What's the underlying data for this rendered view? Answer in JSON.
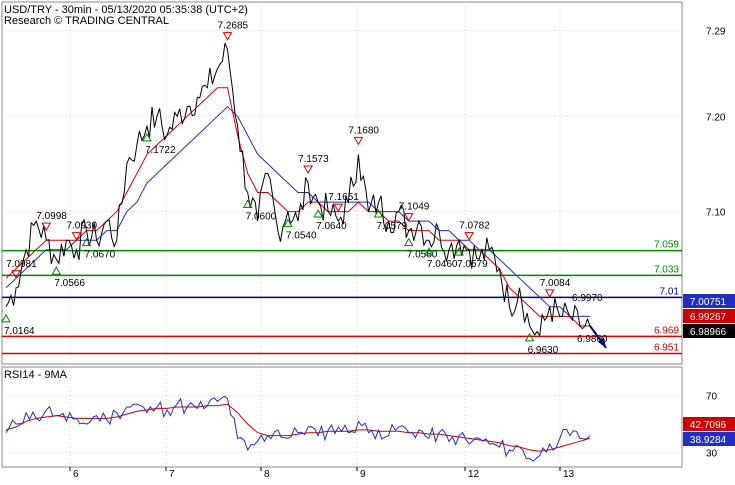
{
  "header": {
    "title": "USD/TRY - 30min - 05/13/2020 05:35:38 (UTC+2)",
    "subtitle": "Research © TRADING CENTRAL"
  },
  "colors": {
    "price": "#000000",
    "ma_fast": "#cc0000",
    "ma_slow": "#1f2fbf",
    "support": "#008800",
    "resistance_red": "#dd0000",
    "pivot_blue": "#00007f",
    "marker_up": "#008800",
    "marker_down": "#dd0000",
    "rsi": "#1f2fbf",
    "rsi_ma": "#cc0000",
    "grid": "#cccccc"
  },
  "chart_data": [
    {
      "type": "line",
      "title": "USD/TRY - 30min - 05/13/2020 05:35:38 (UTC+2)",
      "x_tick_labels": [
        "6",
        "7",
        "8",
        "9",
        "12",
        "13"
      ],
      "y_tick_labels": [
        "7.29",
        "7.20",
        "7.10"
      ],
      "ylim": [
        6.94,
        7.32
      ],
      "grid": true,
      "price_path": [
        7.0,
        7.02,
        7.06,
        7.09,
        7.07,
        7.05,
        7.07,
        7.06,
        7.08,
        7.07,
        7.09,
        7.07,
        7.15,
        7.17,
        7.19,
        7.2,
        7.18,
        7.2,
        7.21,
        7.22,
        7.23,
        7.25,
        7.27,
        7.19,
        7.12,
        7.09,
        7.14,
        7.08,
        7.1,
        7.09,
        7.13,
        7.11,
        7.1,
        7.09,
        7.11,
        7.16,
        7.1,
        7.11,
        7.09,
        7.1,
        7.08,
        7.09,
        7.07,
        7.08,
        7.06,
        7.07,
        7.06,
        7.05,
        7.06,
        7.04,
        7.0,
        7.02,
        6.98,
        6.97,
        7.0,
        6.99,
        6.99,
        6.98,
        6.98
      ],
      "ma_fast_path": [
        7.03,
        7.04,
        7.05,
        7.06,
        7.07,
        7.07,
        7.07,
        7.07,
        7.08,
        7.08,
        7.09,
        7.1,
        7.12,
        7.14,
        7.16,
        7.17,
        7.18,
        7.19,
        7.2,
        7.21,
        7.22,
        7.23,
        7.23,
        7.18,
        7.14,
        7.12,
        7.12,
        7.11,
        7.1,
        7.1,
        7.11,
        7.11,
        7.1,
        7.1,
        7.1,
        7.11,
        7.1,
        7.1,
        7.09,
        7.09,
        7.08,
        7.08,
        7.08,
        7.07,
        7.07,
        7.07,
        7.06,
        7.06,
        7.05,
        7.04,
        7.02,
        7.01,
        7.0,
        6.99,
        6.99,
        6.99,
        6.99,
        6.98,
        6.98
      ],
      "ma_slow_path": [
        7.02,
        7.03,
        7.04,
        7.05,
        7.06,
        7.06,
        7.06,
        7.07,
        7.07,
        7.07,
        7.08,
        7.08,
        7.1,
        7.11,
        7.13,
        7.14,
        7.15,
        7.16,
        7.17,
        7.18,
        7.19,
        7.2,
        7.21,
        7.2,
        7.18,
        7.16,
        7.15,
        7.14,
        7.13,
        7.12,
        7.12,
        7.11,
        7.11,
        7.11,
        7.11,
        7.11,
        7.11,
        7.1,
        7.1,
        7.1,
        7.09,
        7.09,
        7.09,
        7.08,
        7.08,
        7.07,
        7.07,
        7.06,
        7.06,
        7.05,
        7.04,
        7.03,
        7.02,
        7.01,
        7.0,
        7.0,
        6.99,
        6.99,
        6.99
      ],
      "horizontal_levels": [
        {
          "value": 7.059,
          "label": "7.059",
          "color": "#008800"
        },
        {
          "value": 7.033,
          "label": "7.033",
          "color": "#008800"
        },
        {
          "value": 7.01,
          "label": "7.01",
          "color": "#00007f"
        },
        {
          "value": 6.969,
          "label": "6.969",
          "color": "#dd0000"
        },
        {
          "value": 6.951,
          "label": "6.951",
          "color": "#dd0000"
        }
      ],
      "price_badges": [
        {
          "label": "7.00751",
          "value": 7.0075,
          "bg": "#1f2fbf"
        },
        {
          "label": "6.99267",
          "value": 6.9927,
          "bg": "#cc0000"
        },
        {
          "label": "6.98966",
          "value": 6.9897,
          "bg": "#000000"
        }
      ],
      "annotations_up": [
        {
          "label": "7.0164",
          "i": 0
        },
        {
          "label": "7.0566",
          "i": 5
        },
        {
          "label": "7.0670",
          "i": 8
        },
        {
          "label": "7.1722",
          "i": 14
        },
        {
          "label": "7.0600",
          "i": 24
        },
        {
          "label": "7.0540",
          "i": 28
        },
        {
          "label": "7.0640",
          "i": 31
        },
        {
          "label": "7.0579",
          "i": 37
        },
        {
          "label": "7.0560",
          "i": 40
        },
        {
          "label": "7.0460",
          "i": 42
        },
        {
          "label": "7.0579",
          "i": 45
        },
        {
          "label": "6.9630",
          "i": 52
        }
      ],
      "annotations_down": [
        {
          "label": "7.0981",
          "i": 1
        },
        {
          "label": "7.0998",
          "i": 4
        },
        {
          "label": "7.0930",
          "i": 7
        },
        {
          "label": "7.2685",
          "i": 22
        },
        {
          "label": "7.1573",
          "i": 30
        },
        {
          "label": "7.1651",
          "i": 33
        },
        {
          "label": "7.1680",
          "i": 35
        },
        {
          "label": "7.1049",
          "i": 40
        },
        {
          "label": "7.0782",
          "i": 46
        },
        {
          "label": "7.0084",
          "i": 54
        }
      ],
      "price_labels_free": [
        {
          "label": "6.9970",
          "value": 7.002
        }
      ],
      "target_label": "6.9800",
      "target_value": 6.9695
    },
    {
      "type": "line",
      "title": "RSI14 - 9MA",
      "y_tick_labels": [
        "70",
        "30"
      ],
      "ylim": [
        20,
        90
      ],
      "rsi_values": [
        44,
        50,
        58,
        54,
        60,
        56,
        52,
        54,
        50,
        56,
        53,
        58,
        62,
        64,
        58,
        62,
        60,
        64,
        62,
        61,
        63,
        66,
        68,
        40,
        32,
        38,
        42,
        46,
        40,
        44,
        48,
        42,
        46,
        48,
        44,
        52,
        44,
        46,
        42,
        48,
        44,
        46,
        40,
        44,
        38,
        42,
        36,
        40,
        36,
        34,
        32,
        34,
        26,
        28,
        36,
        40,
        42,
        40,
        42
      ],
      "rsi_ma_values": [
        46,
        48,
        52,
        54,
        55,
        56,
        55,
        54,
        54,
        54,
        54,
        55,
        57,
        59,
        60,
        61,
        61,
        62,
        62,
        62,
        63,
        63,
        64,
        58,
        50,
        44,
        42,
        42,
        42,
        43,
        44,
        44,
        45,
        45,
        45,
        46,
        46,
        45,
        45,
        45,
        44,
        44,
        43,
        43,
        42,
        41,
        40,
        39,
        38,
        37,
        35,
        34,
        32,
        31,
        32,
        34,
        36,
        38,
        40
      ],
      "badges": [
        {
          "label": "42.7096",
          "value": 42.7,
          "bg": "#cc0000"
        },
        {
          "label": "38.9284",
          "value": 38.93,
          "bg": "#1f2fbf"
        }
      ]
    }
  ]
}
